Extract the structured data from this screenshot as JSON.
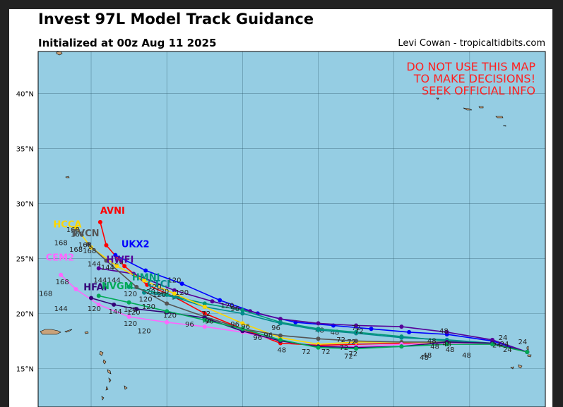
{
  "header": {
    "title": "Invest 97L Model Track Guidance",
    "subtitle": "Initialized at 00z Aug 11 2025",
    "credit": "Levi Cowan - tropicaltidbits.com"
  },
  "warning": {
    "lines": [
      "DO NOT USE THIS MAP",
      "TO MAKE DECISIONS!",
      "SEEK OFFICIAL INFO"
    ],
    "color": "#ff2020"
  },
  "colors": {
    "ocean": "#95cde3",
    "land": "#c9a27a"
  },
  "chart_data": {
    "type": "line",
    "title": "Invest 97L Model Track Guidance",
    "xlim": [
      -78.5,
      -45
    ],
    "ylim": [
      11.5,
      43.8
    ],
    "xticks": [
      -75,
      -70,
      -65,
      -60,
      -55,
      -50,
      -45
    ],
    "yticks": [
      15,
      20,
      25,
      30,
      35,
      40
    ],
    "ytick_labels": [
      "15°N",
      "20°N",
      "25°N",
      "30°N",
      "35°N",
      "40°N"
    ],
    "xlabel": "",
    "ylabel": "",
    "grid": true,
    "series": [
      {
        "name": "AVNI",
        "color": "#ff0000",
        "points": [
          [
            -46.2,
            16.5
          ],
          [
            -48.5,
            17.3
          ],
          [
            -51.5,
            17.4
          ],
          [
            -54.5,
            17.3
          ],
          [
            -57.5,
            17.2
          ],
          [
            -60,
            17.1
          ],
          [
            -62.5,
            17.3
          ],
          [
            -65,
            18.6
          ],
          [
            -67.5,
            20.0
          ],
          [
            -69.5,
            21.5
          ],
          [
            -71.3,
            22.6
          ],
          [
            -72.8,
            24.3
          ],
          [
            -74,
            26.2
          ],
          [
            -74.4,
            28.3
          ]
        ],
        "hour_labels": [
          {
            "at": 6,
            "text": "48"
          },
          {
            "at": 8,
            "text": "72"
          },
          {
            "at": 10,
            "text": "120"
          }
        ]
      },
      {
        "name": "UKX2",
        "color": "#0000ff",
        "points": [
          [
            -46.2,
            16.5
          ],
          [
            -48.5,
            17.5
          ],
          [
            -51.5,
            18.1
          ],
          [
            -54,
            18.3
          ],
          [
            -56.5,
            18.6
          ],
          [
            -59,
            18.9
          ],
          [
            -61.5,
            19.2
          ],
          [
            -64,
            20.0
          ],
          [
            -66.5,
            21.2
          ],
          [
            -69,
            22.7
          ],
          [
            -71.4,
            23.9
          ],
          [
            -73.4,
            25.3
          ]
        ],
        "hour_labels": [
          {
            "at": 5,
            "text": "48"
          },
          {
            "at": 11,
            "text": "120"
          }
        ],
        "label_pos": [
          -73,
          26.0
        ]
      },
      {
        "name": "HWFI",
        "color": "#550099",
        "points": [
          [
            -46.2,
            16.5
          ],
          [
            -48.5,
            17.6
          ],
          [
            -51.5,
            18.3
          ],
          [
            -54.5,
            18.8
          ],
          [
            -57.5,
            18.9
          ],
          [
            -60,
            19.1
          ],
          [
            -62.5,
            19.5
          ],
          [
            -64.5,
            20.2
          ],
          [
            -67,
            21.1
          ],
          [
            -69.5,
            22.1
          ],
          [
            -72.2,
            23.6
          ],
          [
            -74.5,
            24.1
          ]
        ],
        "hour_labels": [
          {
            "at": 5,
            "text": "48"
          },
          {
            "at": 9,
            "text": "96"
          }
        ],
        "label_pos": [
          -74,
          24.6
        ]
      },
      {
        "name": "HMNI",
        "color": "#009977",
        "points": [
          [
            -46.2,
            16.5
          ],
          [
            -48.5,
            17.2
          ],
          [
            -51.5,
            17.5
          ],
          [
            -54.5,
            17.9
          ],
          [
            -57.5,
            18.3
          ],
          [
            -60,
            18.6
          ],
          [
            -62.5,
            19.2
          ],
          [
            -65,
            20.3
          ],
          [
            -67.5,
            20.9
          ],
          [
            -70,
            21.7
          ],
          [
            -72.5,
            22.4
          ]
        ],
        "hour_labels": [
          {
            "at": 10,
            "text": "120"
          }
        ],
        "label_pos": [
          -72.3,
          23.0
        ]
      },
      {
        "name": "CTCI",
        "color": "#008b8b",
        "points": [
          [
            -46.2,
            16.5
          ],
          [
            -48.5,
            17.3
          ],
          [
            -51.5,
            17.6
          ],
          [
            -54.5,
            17.8
          ],
          [
            -57.5,
            18.2
          ],
          [
            -60,
            18.5
          ],
          [
            -62.5,
            19.1
          ],
          [
            -65,
            20.0
          ],
          [
            -67.5,
            20.6
          ],
          [
            -69.5,
            21.5
          ],
          [
            -71.5,
            21.9
          ]
        ],
        "hour_labels": [
          {
            "at": 10,
            "text": "120"
          }
        ],
        "label_pos": [
          -71.3,
          22.4
        ]
      },
      {
        "name": "HCCA",
        "color": "#ffd700",
        "points": [
          [
            -46.2,
            16.5
          ],
          [
            -48.5,
            17.2
          ],
          [
            -51.5,
            17.3
          ],
          [
            -54.5,
            17.4
          ],
          [
            -57.5,
            17.4
          ],
          [
            -60,
            17.2
          ],
          [
            -62.5,
            17.8
          ],
          [
            -65,
            19.1
          ],
          [
            -67.5,
            20.6
          ],
          [
            -69.5,
            21.8
          ],
          [
            -71.5,
            23.0
          ],
          [
            -73.3,
            24.3
          ],
          [
            -75,
            26.0
          ],
          [
            -76,
            27.8
          ]
        ],
        "hour_labels": [
          {
            "at": 8,
            "text": "72"
          },
          {
            "at": 13,
            "text": "168"
          }
        ],
        "label_pos": [
          -77.5,
          27.8
        ]
      },
      {
        "name": "TVCN",
        "color": "#555555",
        "points": [
          [
            -46.2,
            16.5
          ],
          [
            -48.5,
            17.3
          ],
          [
            -51.5,
            17.4
          ],
          [
            -54.5,
            17.4
          ],
          [
            -57.5,
            17.5
          ],
          [
            -60,
            17.7
          ],
          [
            -62.5,
            18.0
          ],
          [
            -65,
            18.6
          ],
          [
            -67.5,
            19.7
          ],
          [
            -70,
            20.9
          ],
          [
            -72,
            22.4
          ],
          [
            -74,
            24.8
          ],
          [
            -75.2,
            26.3
          ]
        ],
        "hour_labels": [
          {
            "at": 11,
            "text": "144"
          },
          {
            "at": 12,
            "text": "168"
          }
        ],
        "label_pos": [
          -76.3,
          27.0
        ]
      },
      {
        "name": "CEM2",
        "color": "#ff66ff",
        "points": [
          [
            -46.2,
            16.5
          ],
          [
            -48.5,
            17.2
          ],
          [
            -51.5,
            17.3
          ],
          [
            -54.5,
            17.2
          ],
          [
            -57.5,
            17.0
          ],
          [
            -60,
            17.0
          ],
          [
            -62.5,
            17.5
          ],
          [
            -65,
            18.3
          ],
          [
            -67.5,
            18.8
          ],
          [
            -70,
            19.2
          ],
          [
            -72.5,
            19.7
          ],
          [
            -74.5,
            20.8
          ],
          [
            -76,
            22.2
          ],
          [
            -77,
            23.5
          ]
        ],
        "hour_labels": [
          {
            "at": 10,
            "text": "120"
          },
          {
            "at": 13,
            "text": "168"
          }
        ],
        "label_pos": [
          -78,
          24.8
        ]
      },
      {
        "name": "HFAI",
        "color": "#330077",
        "points": [
          [
            -46.2,
            16.5
          ],
          [
            -48.5,
            17.3
          ],
          [
            -51.5,
            17.4
          ],
          [
            -54.5,
            17.0
          ],
          [
            -57.5,
            16.9
          ],
          [
            -60,
            17.0
          ],
          [
            -62.5,
            17.5
          ],
          [
            -65,
            18.4
          ],
          [
            -67.5,
            19.6
          ],
          [
            -70,
            20.1
          ],
          [
            -72,
            20.4
          ],
          [
            -73.5,
            20.8
          ],
          [
            -75,
            21.4
          ]
        ],
        "hour_labels": [
          {
            "at": 11,
            "text": "144"
          }
        ],
        "label_pos": [
          -75.5,
          22.1
        ]
      },
      {
        "name": "NVGM",
        "color": "#00aa55",
        "points": [
          [
            -46.2,
            16.5
          ],
          [
            -48.5,
            17.2
          ],
          [
            -51.5,
            17.2
          ],
          [
            -54.5,
            17.0
          ],
          [
            -57.5,
            16.8
          ],
          [
            -60,
            16.9
          ],
          [
            -62.5,
            17.6
          ],
          [
            -65,
            18.6
          ],
          [
            -67.5,
            19.4
          ],
          [
            -70,
            20.2
          ],
          [
            -72.5,
            21.0
          ],
          [
            -74.5,
            21.6
          ]
        ],
        "hour_labels": [
          {
            "at": 10,
            "text": "120"
          }
        ],
        "label_pos": [
          -74.3,
          22.2
        ]
      }
    ],
    "free_labels": [
      {
        "text": "24",
        "lon": -46.5,
        "lat": 17.2
      },
      {
        "text": "24",
        "lon": -47.8,
        "lat": 17.6
      },
      {
        "text": "24",
        "lon": -48.2,
        "lat": 16.9
      },
      {
        "text": "24",
        "lon": -47.5,
        "lat": 16.5
      },
      {
        "text": "24",
        "lon": -47.7,
        "lat": 17.0
      },
      {
        "text": "48",
        "lon": -52.5,
        "lat": 17.3
      },
      {
        "text": "48",
        "lon": -51.5,
        "lat": 17.0
      },
      {
        "text": "48",
        "lon": -51.3,
        "lat": 16.5
      },
      {
        "text": "48",
        "lon": -52.8,
        "lat": 16.0
      },
      {
        "text": "48",
        "lon": -53.0,
        "lat": 15.8
      },
      {
        "text": "48",
        "lon": -51.7,
        "lat": 18.2
      },
      {
        "text": "48",
        "lon": -50.2,
        "lat": 16.0
      },
      {
        "text": "48",
        "lon": -52.3,
        "lat": 16.8
      },
      {
        "text": "72",
        "lon": -57.3,
        "lat": 18.2
      },
      {
        "text": "72",
        "lon": -57.8,
        "lat": 17.2
      },
      {
        "text": "72",
        "lon": -58.3,
        "lat": 16.7
      },
      {
        "text": "72",
        "lon": -59.5,
        "lat": 16.3
      },
      {
        "text": "72",
        "lon": -57.7,
        "lat": 16.1
      },
      {
        "text": "72",
        "lon": -57.5,
        "lat": 18.5
      },
      {
        "text": "72",
        "lon": -60.8,
        "lat": 16.3
      },
      {
        "text": "72",
        "lon": -58.5,
        "lat": 17.4
      },
      {
        "text": "72",
        "lon": -58.0,
        "lat": 15.9
      },
      {
        "text": "96",
        "lon": -62.8,
        "lat": 18.5
      },
      {
        "text": "96",
        "lon": -64.8,
        "lat": 18.6
      },
      {
        "text": "96",
        "lon": -65.5,
        "lat": 20.2
      },
      {
        "text": "96",
        "lon": -65.5,
        "lat": 18.8
      },
      {
        "text": "96",
        "lon": -67.2,
        "lat": 19.1
      },
      {
        "text": "96",
        "lon": -68.5,
        "lat": 18.8
      },
      {
        "text": "96",
        "lon": -64.0,
        "lat": 17.6
      },
      {
        "text": "96",
        "lon": -63.3,
        "lat": 17.8
      },
      {
        "text": "120",
        "lon": -69.5,
        "lat": 22.8
      },
      {
        "text": "120",
        "lon": -70.8,
        "lat": 22.2
      },
      {
        "text": "120",
        "lon": -70.3,
        "lat": 21.8
      },
      {
        "text": "120",
        "lon": -70.5,
        "lat": 21.5
      },
      {
        "text": "120",
        "lon": -71.2,
        "lat": 20.4
      },
      {
        "text": "120",
        "lon": -69.0,
        "lat": 21.7
      },
      {
        "text": "120",
        "lon": -66.0,
        "lat": 20.5
      },
      {
        "text": "120",
        "lon": -71.5,
        "lat": 18.2
      },
      {
        "text": "120",
        "lon": -72.2,
        "lat": 19.9
      },
      {
        "text": "120",
        "lon": -69.8,
        "lat": 19.6
      },
      {
        "text": "120",
        "lon": -74.8,
        "lat": 20.2
      },
      {
        "text": "144",
        "lon": -74.8,
        "lat": 24.3
      },
      {
        "text": "144",
        "lon": -74.4,
        "lat": 22.8
      },
      {
        "text": "144",
        "lon": -73.5,
        "lat": 22.8
      },
      {
        "text": "144",
        "lon": -77.0,
        "lat": 20.2
      },
      {
        "text": "168",
        "lon": -77.0,
        "lat": 26.2
      },
      {
        "text": "168",
        "lon": -76.0,
        "lat": 25.6
      },
      {
        "text": "168",
        "lon": -75.4,
        "lat": 26.0
      },
      {
        "text": "168",
        "lon": -76.2,
        "lat": 27.4
      },
      {
        "text": "168",
        "lon": -78.0,
        "lat": 21.6
      }
    ]
  }
}
